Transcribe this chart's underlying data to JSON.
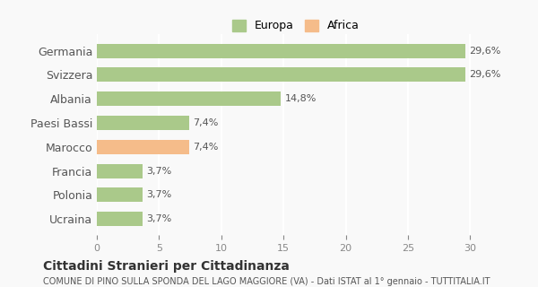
{
  "categories": [
    "Germania",
    "Svizzera",
    "Albania",
    "Paesi Bassi",
    "Marocco",
    "Francia",
    "Polonia",
    "Ucraina"
  ],
  "values": [
    29.6,
    29.6,
    14.8,
    7.4,
    7.4,
    3.7,
    3.7,
    3.7
  ],
  "labels": [
    "29,6%",
    "29,6%",
    "14,8%",
    "7,4%",
    "7,4%",
    "3,7%",
    "3,7%",
    "3,7%"
  ],
  "bar_colors": [
    "#aac98a",
    "#aac98a",
    "#aac98a",
    "#aac98a",
    "#f5bc8a",
    "#aac98a",
    "#aac98a",
    "#aac98a"
  ],
  "legend_items": [
    {
      "label": "Europa",
      "color": "#aac98a"
    },
    {
      "label": "Africa",
      "color": "#f5bc8a"
    }
  ],
  "xlim": [
    0,
    32
  ],
  "xticks": [
    0,
    5,
    10,
    15,
    20,
    25,
    30
  ],
  "title": "Cittadini Stranieri per Cittadinanza",
  "subtitle": "COMUNE DI PINO SULLA SPONDA DEL LAGO MAGGIORE (VA) - Dati ISTAT al 1° gennaio - TUTTITALIA.IT",
  "background_color": "#f9f9f9",
  "grid_color": "#ffffff",
  "bar_height": 0.6
}
